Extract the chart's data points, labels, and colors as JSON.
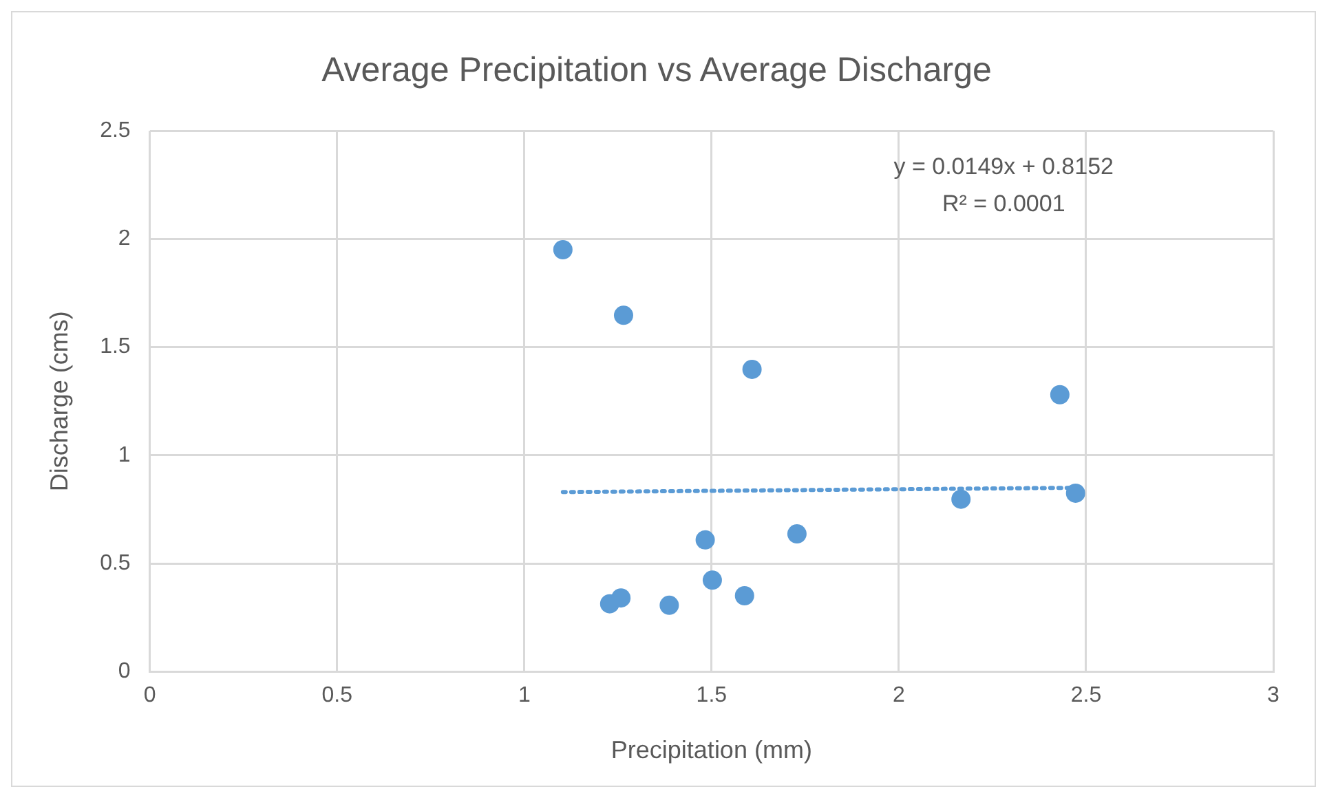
{
  "chart_data": {
    "type": "scatter",
    "title": "Average Precipitation vs Average Discharge",
    "xlabel": "Precipitation (mm)",
    "ylabel": "Discharge (cms)",
    "annotations": [
      "y = 0.0149x + 0.8152",
      "R² = 0.0001"
    ],
    "xlim": [
      0,
      3
    ],
    "xticks": [
      0,
      0.5,
      1,
      1.5,
      2,
      2.5,
      3
    ],
    "ylim": [
      0,
      2.5
    ],
    "yticks": [
      0,
      0.5,
      1,
      1.5,
      2,
      2.5
    ],
    "grid": true,
    "legend": false,
    "series": [
      {
        "color": "#5b9bd5",
        "marker": "circle",
        "x": [
          1.103,
          1.265,
          1.608,
          2.43,
          2.166,
          2.472,
          1.728,
          1.483,
          1.502,
          1.588,
          1.387,
          1.228,
          1.258
        ],
        "values": [
          1.95,
          1.647,
          1.397,
          1.28,
          0.797,
          0.825,
          0.637,
          0.609,
          0.423,
          0.351,
          0.307,
          0.314,
          0.341
        ]
      },
      {
        "type": "line",
        "color": "#5b9bd5",
        "marker": "none",
        "line_style": "dotted",
        "x": [
          1.103,
          2.472
        ],
        "values": [
          0.83,
          0.85
        ]
      }
    ]
  }
}
